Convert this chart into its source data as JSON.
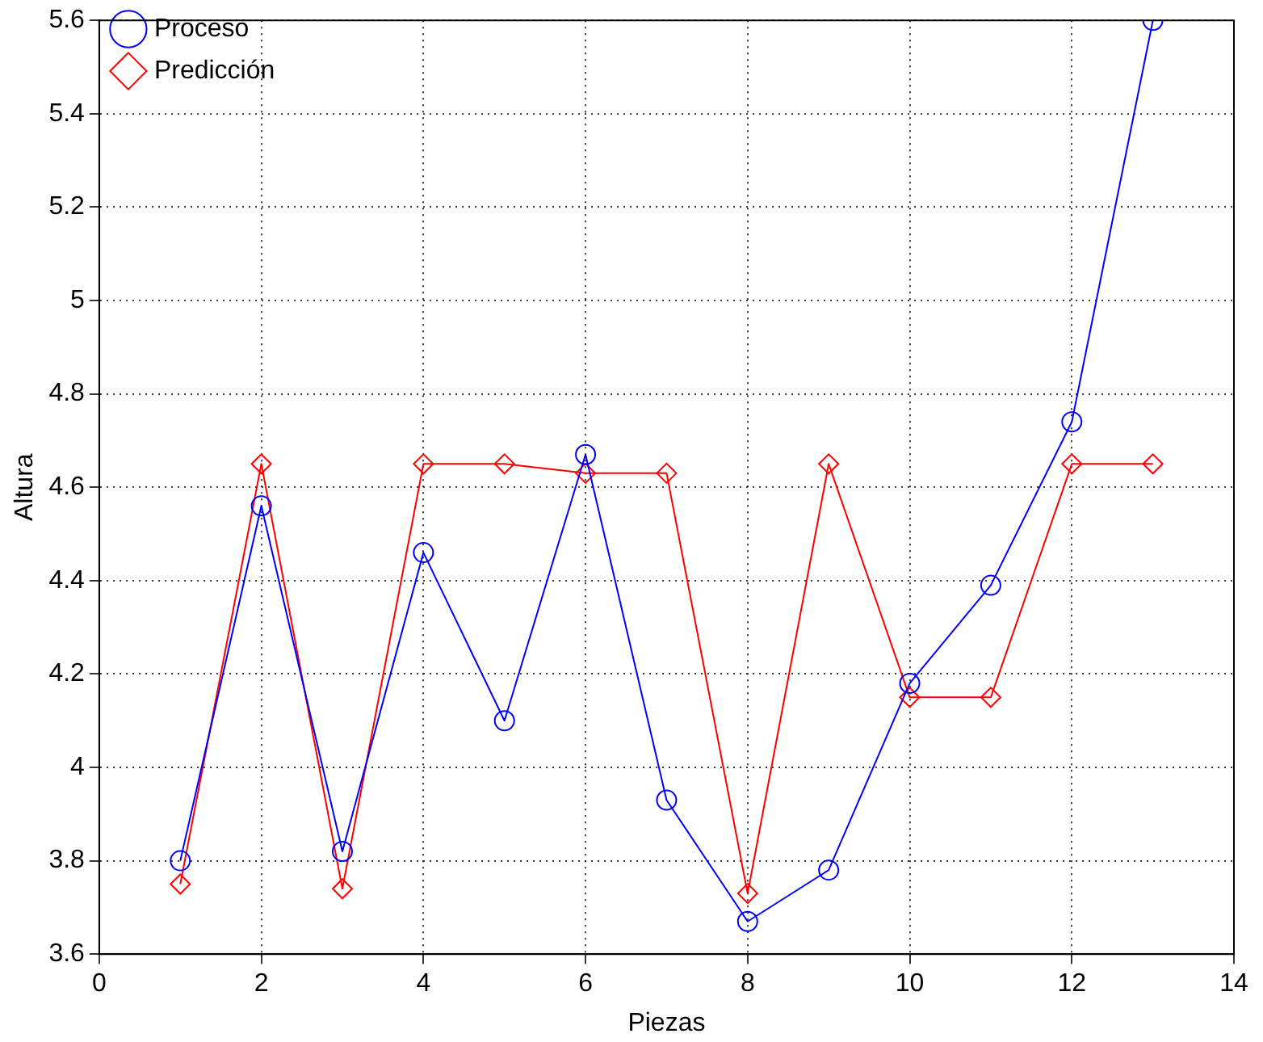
{
  "chart_data": {
    "type": "line",
    "xlabel": "Piezas",
    "ylabel": "Altura",
    "x": [
      1,
      2,
      3,
      4,
      5,
      6,
      7,
      8,
      9,
      10,
      11,
      12,
      13
    ],
    "series": [
      {
        "name": "Proceso",
        "color": "#0000ff",
        "marker": "circle",
        "values": [
          3.8,
          4.56,
          3.82,
          4.46,
          4.1,
          4.67,
          3.93,
          3.67,
          3.78,
          4.18,
          4.39,
          4.74,
          5.6
        ]
      },
      {
        "name": "Predicción",
        "color": "#ff0000",
        "marker": "diamond",
        "values": [
          3.75,
          4.65,
          3.74,
          4.65,
          4.65,
          4.63,
          4.63,
          3.73,
          4.65,
          4.15,
          4.15,
          4.65,
          4.65
        ]
      }
    ],
    "xlim": [
      0,
      14
    ],
    "xticks": [
      0,
      2,
      4,
      6,
      8,
      10,
      12,
      14
    ],
    "ylim": [
      3.6,
      5.6
    ],
    "yticks": [
      3.6,
      3.8,
      4,
      4.2,
      4.4,
      4.6,
      4.8,
      5,
      5.2,
      5.4,
      5.6
    ],
    "grid": true,
    "legend": "top left",
    "line_style": "solid"
  }
}
